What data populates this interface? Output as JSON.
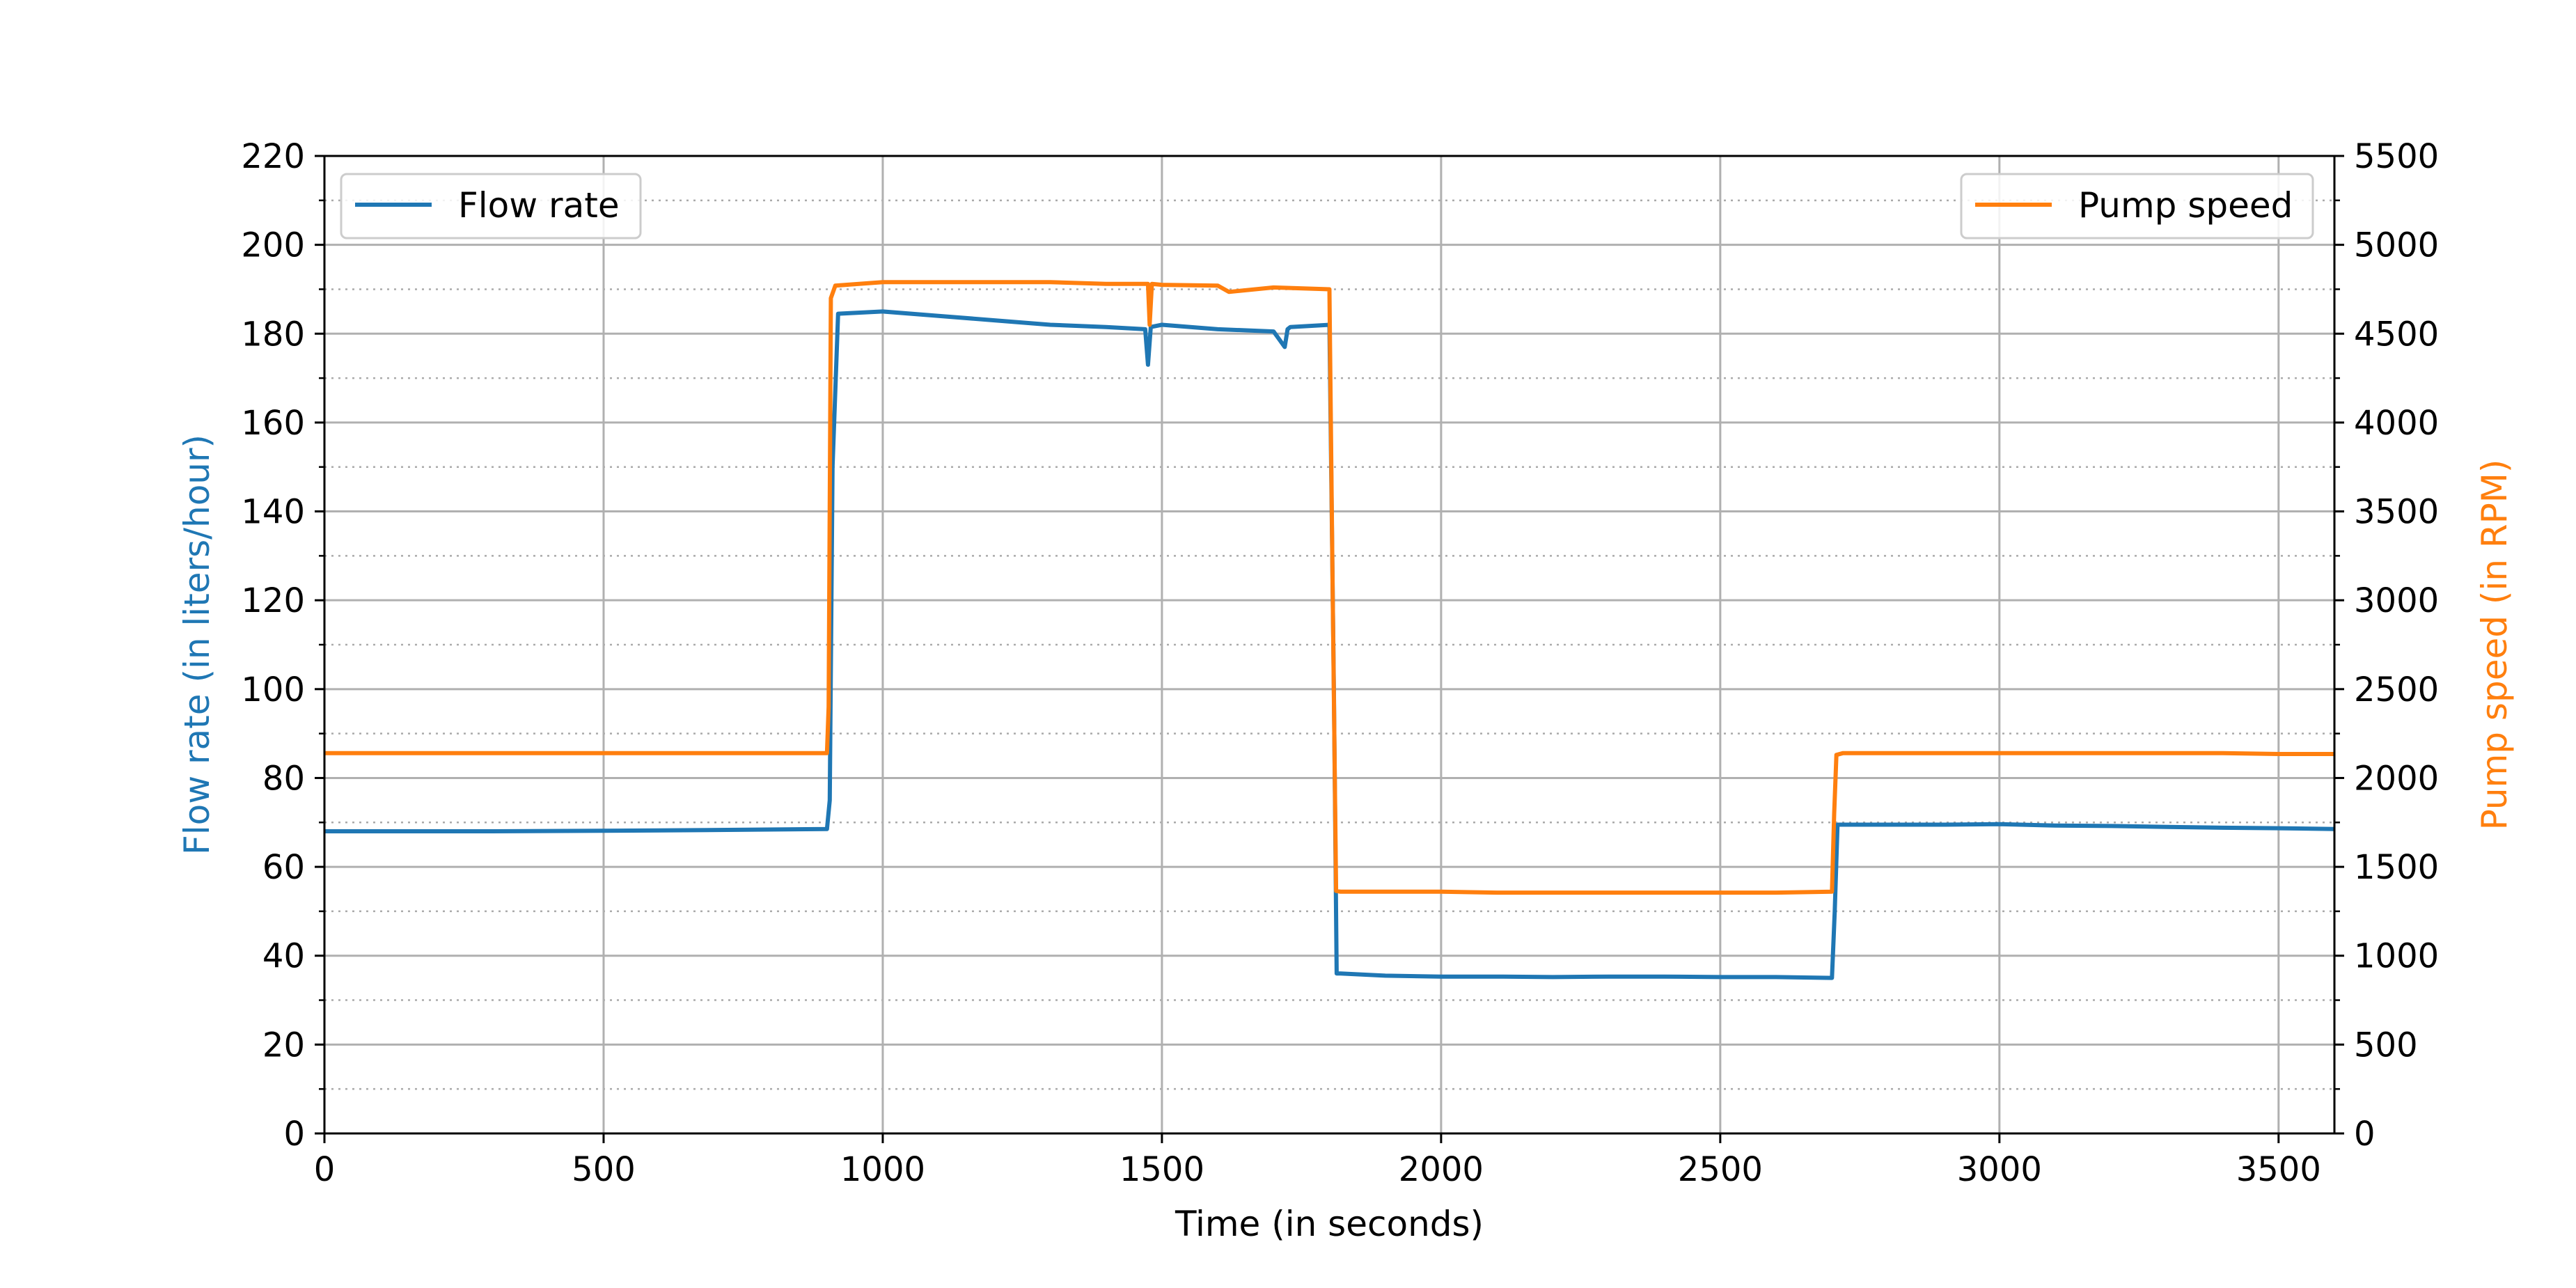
{
  "chart_data": {
    "type": "line",
    "title": "",
    "xlabel": "Time (in seconds)",
    "ylabel_left": "Flow rate (in liters/hour)",
    "ylabel_right": "Pump speed (in RPM)",
    "xlim": [
      0,
      3600
    ],
    "ylim_left": [
      0,
      220
    ],
    "ylim_right": [
      0,
      5500
    ],
    "x_ticks": [
      "0",
      "500",
      "1000",
      "1500",
      "2000",
      "2500",
      "3000",
      "3500"
    ],
    "y_ticks_left": [
      "0",
      "20",
      "40",
      "60",
      "80",
      "100",
      "120",
      "140",
      "160",
      "180",
      "200",
      "220"
    ],
    "y_ticks_right": [
      "0",
      "500",
      "1000",
      "1500",
      "2000",
      "2500",
      "3000",
      "3500",
      "4000",
      "4500",
      "5000",
      "5500"
    ],
    "grid": "major solid, minor dotted",
    "legend_left_position": "upper-left",
    "legend_right_position": "upper-right",
    "series": [
      {
        "name": "Flow rate",
        "axis": "left",
        "color": "#1f77b4",
        "x": [
          0,
          300,
          600,
          900,
          905,
          910,
          920,
          1000,
          1100,
          1200,
          1300,
          1400,
          1470,
          1475,
          1480,
          1500,
          1600,
          1700,
          1720,
          1725,
          1730,
          1800,
          1808,
          1813,
          1820,
          1900,
          2000,
          2100,
          2200,
          2300,
          2400,
          2500,
          2600,
          2700,
          2705,
          2710,
          2720,
          2800,
          2900,
          3000,
          3100,
          3200,
          3300,
          3400,
          3500,
          3600
        ],
        "y": [
          68,
          68,
          68.2,
          68.5,
          75,
          150,
          184.5,
          185,
          184,
          183,
          182,
          181.5,
          181,
          173,
          181.5,
          182,
          181,
          180.5,
          177,
          181,
          181.5,
          182,
          100,
          36,
          36,
          35.5,
          35.3,
          35.3,
          35.2,
          35.3,
          35.3,
          35.2,
          35.2,
          35,
          50,
          69.5,
          69.5,
          69.5,
          69.5,
          69.6,
          69.3,
          69.2,
          69,
          68.8,
          68.7,
          68.5
        ]
      },
      {
        "name": "Pump speed",
        "axis": "right",
        "color": "#ff7f0e",
        "x": [
          0,
          300,
          600,
          900,
          903,
          907,
          915,
          1000,
          1100,
          1200,
          1300,
          1400,
          1475,
          1478,
          1482,
          1500,
          1600,
          1620,
          1700,
          1800,
          1806,
          1812,
          1820,
          1900,
          2000,
          2100,
          2200,
          2300,
          2400,
          2500,
          2600,
          2700,
          2704,
          2708,
          2720,
          2800,
          2900,
          3000,
          3100,
          3200,
          3300,
          3400,
          3500,
          3600
        ],
        "y": [
          2140,
          2140,
          2140,
          2140,
          2400,
          4700,
          4770,
          4790,
          4790,
          4790,
          4790,
          4780,
          4780,
          4550,
          4780,
          4775,
          4770,
          4735,
          4760,
          4750,
          3000,
          1365,
          1360,
          1360,
          1360,
          1355,
          1355,
          1355,
          1355,
          1355,
          1355,
          1360,
          1800,
          2130,
          2140,
          2140,
          2140,
          2140,
          2140,
          2140,
          2140,
          2140,
          2135,
          2135
        ]
      }
    ]
  }
}
